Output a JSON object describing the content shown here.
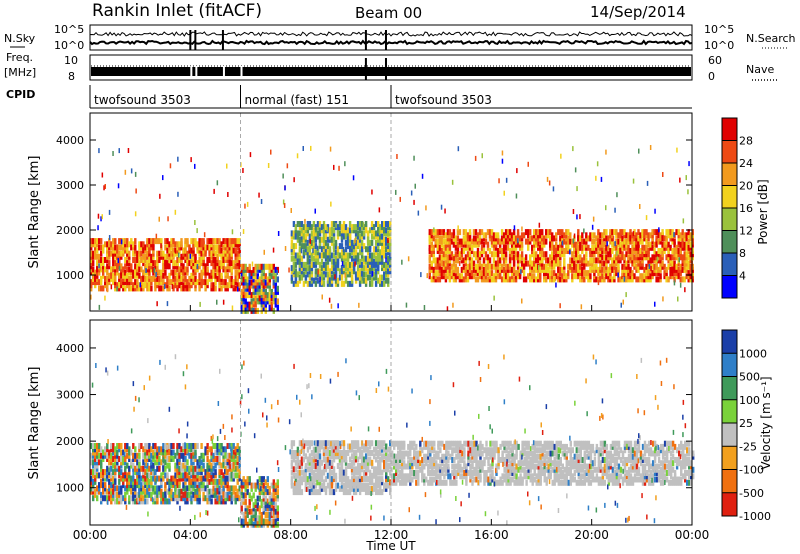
{
  "header": {
    "station": "Rankin Inlet (fitACF)",
    "beam": "Beam 00",
    "date": "14/Sep/2014"
  },
  "summary": {
    "nsky_label": "N.Sky",
    "nsearch_label": "N.Search",
    "nsky_ticks": [
      "10^5",
      "10^0"
    ],
    "nsearch_ticks": [
      "10^5",
      "10^0"
    ],
    "freq_label": "Freq.",
    "freq_unit": "[MHz]",
    "freq_ticks": [
      "10",
      "8"
    ],
    "nave_label": "Nave",
    "nave_ticks": [
      "60",
      "0"
    ],
    "cpid_label": "CPID",
    "cpid_segments": [
      {
        "label": "twofsound 3503",
        "start": 0,
        "end": 6
      },
      {
        "label": "normal (fast) 151",
        "start": 6,
        "end": 12
      },
      {
        "label": "twofsound 3503",
        "start": 12,
        "end": 24
      }
    ]
  },
  "chart_data": [
    {
      "type": "heatmap",
      "name": "power-panel",
      "ylabel": "Slant Range [km]",
      "xlabel": "",
      "ylim": [
        200,
        4600
      ],
      "xlim": [
        0,
        24
      ],
      "yticks": [
        "1000",
        "2000",
        "3000",
        "4000"
      ],
      "colorbar": {
        "label": "Power [dB]",
        "ticks": [
          "4",
          "8",
          "12",
          "16",
          "20",
          "24",
          "28"
        ],
        "colors": [
          "#0000ff",
          "#2a5fb8",
          "#4f8f5a",
          "#9ac23c",
          "#f2d21e",
          "#f29a1e",
          "#ee4a14",
          "#e00000"
        ]
      },
      "bands": [
        {
          "t0": 0.0,
          "t1": 6.0,
          "r0": 700,
          "r1": 1800,
          "level": "high"
        },
        {
          "t0": 6.0,
          "t1": 7.5,
          "r0": 200,
          "r1": 1200,
          "level": "mixed"
        },
        {
          "t0": 8.0,
          "t1": 12.0,
          "r0": 800,
          "r1": 2200,
          "level": "mid"
        },
        {
          "t0": 13.5,
          "t1": 24.0,
          "r0": 900,
          "r1": 2000,
          "level": "high"
        }
      ]
    },
    {
      "type": "heatmap",
      "name": "velocity-panel",
      "ylabel": "Slant Range [km]",
      "xlabel": "Time UT",
      "ylim": [
        200,
        4600
      ],
      "xlim": [
        0,
        24
      ],
      "yticks": [
        "1000",
        "2000",
        "3000",
        "4000"
      ],
      "xticks": [
        "00:00",
        "04:00",
        "08:00",
        "12:00",
        "16:00",
        "20:00",
        "00:00"
      ],
      "colorbar": {
        "label": "Velocity [m s⁻¹]",
        "ticks": [
          "1000",
          "500",
          "100",
          "25",
          "-25",
          "-100",
          "-500",
          "-1000"
        ],
        "colors": [
          "#1b3fa8",
          "#2f7fc8",
          "#3f9a5a",
          "#7ad23a",
          "#c0c0c0",
          "#f2a01e",
          "#f07010",
          "#e02010"
        ]
      },
      "bands": [
        {
          "t0": 0.0,
          "t1": 6.0,
          "r0": 700,
          "r1": 1900,
          "level": "mixed"
        },
        {
          "t0": 6.0,
          "t1": 7.5,
          "r0": 200,
          "r1": 1200,
          "level": "mixed"
        },
        {
          "t0": 8.0,
          "t1": 12.0,
          "r0": 900,
          "r1": 2000,
          "level": "gray"
        },
        {
          "t0": 12.0,
          "t1": 24.0,
          "r0": 1100,
          "r1": 2000,
          "level": "gray"
        }
      ]
    }
  ]
}
